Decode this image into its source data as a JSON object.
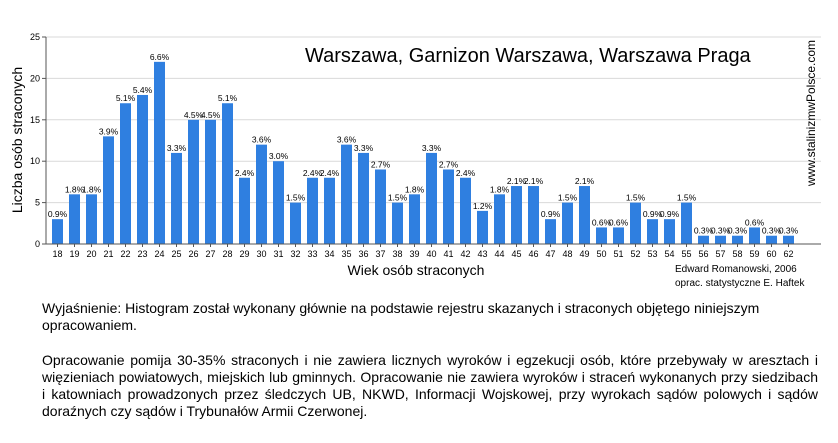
{
  "chart_data": {
    "type": "bar",
    "title": "Warszawa, Garnizon Warszawa, Warszawa Praga",
    "xlabel": "Wiek osób straconych",
    "ylabel": "Liczba osób straconych",
    "ylim": [
      0,
      25
    ],
    "yticks": [
      0,
      5,
      10,
      15,
      20,
      25
    ],
    "grid": true,
    "bar_color": "#2f7fe0",
    "categories": [
      "18",
      "19",
      "20",
      "21",
      "22",
      "23",
      "24",
      "25",
      "26",
      "27",
      "28",
      "29",
      "30",
      "31",
      "32",
      "33",
      "34",
      "35",
      "36",
      "37",
      "38",
      "39",
      "40",
      "41",
      "42",
      "43",
      "44",
      "45",
      "46",
      "47",
      "48",
      "49",
      "50",
      "51",
      "52",
      "53",
      "54",
      "55",
      "56",
      "57",
      "58",
      "59",
      "60",
      "62"
    ],
    "values": [
      3,
      6,
      6,
      13,
      17,
      18,
      22,
      11,
      15,
      15,
      17,
      8,
      12,
      10,
      5,
      8,
      8,
      12,
      11,
      9,
      5,
      6,
      11,
      9,
      8,
      4,
      6,
      7,
      7,
      3,
      5,
      7,
      2,
      2,
      5,
      3,
      3,
      5,
      1,
      1,
      1,
      2,
      1,
      1
    ],
    "data_labels": [
      "0.9%",
      "1.8%",
      "1.8%",
      "3.9%",
      "5.1%",
      "5.4%",
      "6.6%",
      "3.3%",
      "4.5%",
      "4.5%",
      "5.1%",
      "2.4%",
      "3.6%",
      "3.0%",
      "1.5%",
      "2.4%",
      "2.4%",
      "3.6%",
      "3.3%",
      "2.7%",
      "1.5%",
      "1.8%",
      "3.3%",
      "2.7%",
      "2.4%",
      "1.2%",
      "1.8%",
      "2.1%",
      "2.1%",
      "0.9%",
      "1.5%",
      "2.1%",
      "0.6%",
      "0.6%",
      "1.5%",
      "0.9%",
      "0.9%",
      "1.5%",
      "0.3%",
      "0.3%",
      "0.3%",
      "0.6%",
      "0.3%",
      "0.3%"
    ],
    "credit_lines": [
      "Edward Romanowski, 2006",
      "oprac. statystyczne E. Haftek"
    ],
    "watermark": "www.stalinizmwPolsce.com"
  },
  "explanation": {
    "paragraph1": "Wyjaśnienie: Histogram  został wykonany głównie na podstawie rejestru  skazanych i straconych objętego niniejszym opracowaniem.",
    "paragraph2": "Opracowanie pomija 30-35% straconych i nie zawiera  licznych wyroków i  egzekucji osób, które  przebywały w aresztach i więzieniach powiatowych, miejskich lub gminnych. Opracowanie nie zawiera wyroków i straceń wykonanych przy siedzibach i katowniach prowadzonych przez śledczych UB, NKWD, Informacji Wojskowej, przy wyrokach sądów polowych i sądów doraźnych czy sądów i Trybunałów Armii Czerwonej."
  }
}
